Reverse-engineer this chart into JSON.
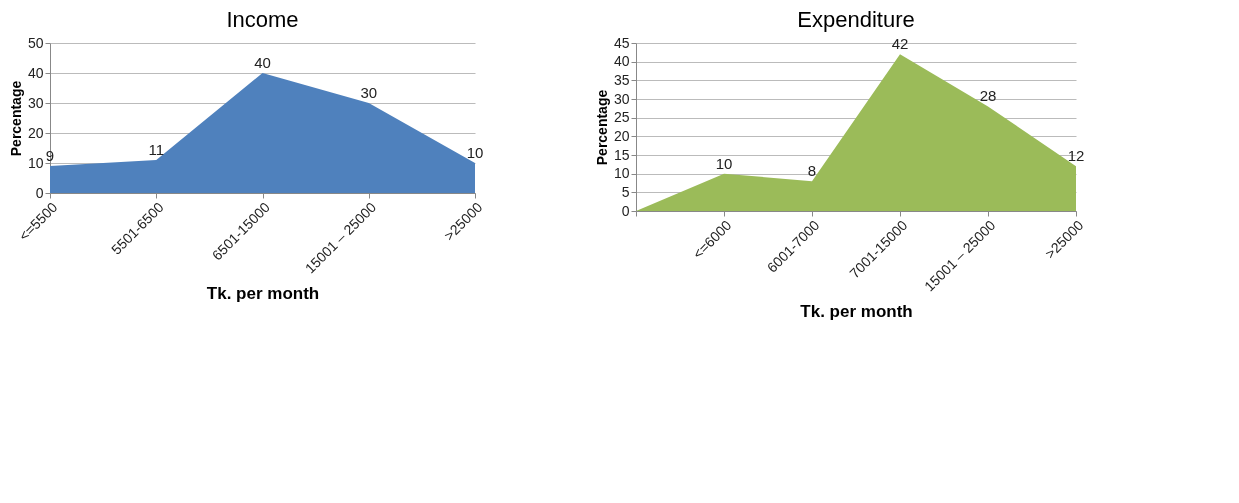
{
  "chart_data": [
    {
      "type": "area",
      "title": "Income",
      "xlabel": "Tk. per month",
      "ylabel": "Percentage",
      "categories": [
        "<=5500",
        "5501-6500",
        "6501-15000",
        "15001 – 25000",
        ">25000"
      ],
      "series": [
        {
          "color": "#4f81bd",
          "values": [
            9,
            11,
            40,
            30,
            10
          ]
        }
      ],
      "ylim": [
        0,
        50
      ],
      "yticks": [
        0,
        10,
        20,
        30,
        40,
        50
      ],
      "grid": "y",
      "data_labels": true
    },
    {
      "type": "area",
      "title": "Expenditure",
      "xlabel": "Tk. per month",
      "ylabel": "Percentage",
      "categories": [
        null,
        "<=6000",
        "6001-7000",
        "7001-15000",
        "15001 – 25000",
        ">25000"
      ],
      "series": [
        {
          "color": "#9bbb59",
          "values": [
            0,
            10,
            8,
            42,
            28,
            12
          ],
          "value_labels": [
            null,
            "10",
            "8",
            "42",
            "28",
            "12"
          ]
        }
      ],
      "ylim": [
        0,
        45
      ],
      "yticks": [
        0,
        5,
        10,
        15,
        20,
        25,
        30,
        35,
        40,
        45
      ],
      "grid": "y"
    }
  ]
}
